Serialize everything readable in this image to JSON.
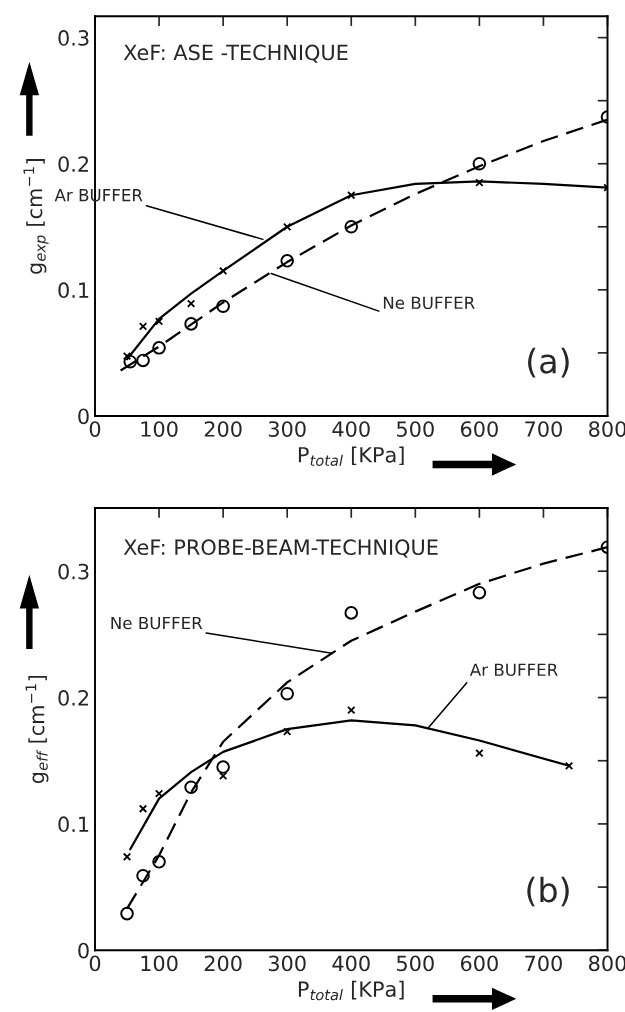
{
  "chart_data": [
    {
      "type": "scatter",
      "title": "XeF: ASE -TECHNIQUE",
      "xlabel": "P$_{total}$ [KPa]",
      "ylabel": "g$_{exp}$ [cm$^{−1}$]",
      "xlim": [
        0,
        800
      ],
      "ylim": [
        0,
        0.317
      ],
      "xticks": [
        0,
        100,
        200,
        300,
        400,
        500,
        600,
        700,
        800
      ],
      "yticks": [
        0,
        {
          "value": 0.05,
          "label": null
        },
        0.1,
        {
          "value": 0.15,
          "label": null
        },
        0.2,
        {
          "value": 0.25,
          "label": null
        },
        0.3
      ],
      "grid": false,
      "legend": false,
      "series": [
        {
          "type": "scatter",
          "marker": "cross",
          "color": "#000000",
          "x": [
            50,
            75,
            100,
            150,
            200,
            300,
            400,
            600,
            800
          ],
          "values": [
            0.0475,
            0.071,
            0.075,
            0.089,
            0.115,
            0.15,
            0.175,
            0.185,
            0.181
          ]
        },
        {
          "type": "scatter",
          "marker": "circle",
          "color": "#000000",
          "x": [
            55,
            75,
            100,
            150,
            200,
            300,
            400,
            600,
            800
          ],
          "values": [
            0.043,
            0.044,
            0.054,
            0.073,
            0.087,
            0.123,
            0.15,
            0.2,
            0.237
          ]
        },
        {
          "type": "line",
          "line_style": "solid",
          "color": "#000000",
          "x": [
            50,
            100,
            150,
            200,
            300,
            400,
            500,
            600,
            700,
            800
          ],
          "values": [
            0.045,
            0.077,
            0.097,
            0.115,
            0.15,
            0.175,
            0.184,
            0.186,
            0.184,
            0.181
          ]
        },
        {
          "type": "line",
          "line_style": "dashed",
          "color": "#000000",
          "x": [
            40,
            100,
            200,
            300,
            400,
            500,
            600,
            700,
            800
          ],
          "values": [
            0.036,
            0.055,
            0.09,
            0.122,
            0.151,
            0.176,
            0.198,
            0.218,
            0.235
          ]
        }
      ],
      "annotations": [
        {
          "text": "Ar BUFFER",
          "x": 262,
          "y": 0.14
        },
        {
          "text": "Ne BUFFER",
          "x": 275,
          "y": 0.113
        },
        "(a)"
      ]
    },
    {
      "type": "scatter",
      "title": "XeF: PROBE-BEAM-TECHNIQUE",
      "xlabel": "P$_{total}$ [KPa]",
      "ylabel": "g$_{eff}$ [cm$^{−1}$]",
      "xlim": [
        0,
        800
      ],
      "ylim": [
        0,
        0.35
      ],
      "xticks": [
        0,
        100,
        200,
        300,
        400,
        500,
        600,
        700,
        800
      ],
      "yticks": [
        0,
        {
          "value": 0.05,
          "label": null
        },
        0.1,
        {
          "value": 0.15,
          "label": null
        },
        0.2,
        {
          "value": 0.25,
          "label": null
        },
        0.3
      ],
      "grid": false,
      "legend": false,
      "series": [
        {
          "type": "scatter",
          "marker": "cross",
          "color": "#000000",
          "x": [
            50,
            75,
            100,
            200,
            300,
            400,
            600,
            740
          ],
          "values": [
            0.074,
            0.112,
            0.124,
            0.138,
            0.173,
            0.19,
            0.156,
            0.146
          ]
        },
        {
          "type": "scatter",
          "marker": "circle",
          "color": "#000000",
          "x": [
            50,
            75,
            100,
            150,
            200,
            300,
            400,
            600,
            800
          ],
          "values": [
            0.029,
            0.059,
            0.07,
            0.129,
            0.145,
            0.203,
            0.267,
            0.283,
            0.319
          ]
        },
        {
          "type": "line",
          "line_style": "solid",
          "color": "#000000",
          "x": [
            55,
            100,
            150,
            200,
            300,
            400,
            500,
            600,
            740
          ],
          "values": [
            0.08,
            0.12,
            0.141,
            0.157,
            0.175,
            0.182,
            0.178,
            0.166,
            0.146
          ]
        },
        {
          "type": "line",
          "line_style": "dashed",
          "color": "#000000",
          "x": [
            50,
            100,
            150,
            200,
            300,
            400,
            500,
            600,
            700,
            800
          ],
          "values": [
            0.033,
            0.075,
            0.125,
            0.165,
            0.212,
            0.245,
            0.268,
            0.29,
            0.306,
            0.319
          ]
        }
      ],
      "annotations": [
        {
          "text": "Ne BUFFER",
          "x": 370,
          "y": 0.235
        },
        {
          "text": "Ar BUFFER",
          "x": 520,
          "y": 0.176
        },
        "(b)"
      ]
    }
  ]
}
